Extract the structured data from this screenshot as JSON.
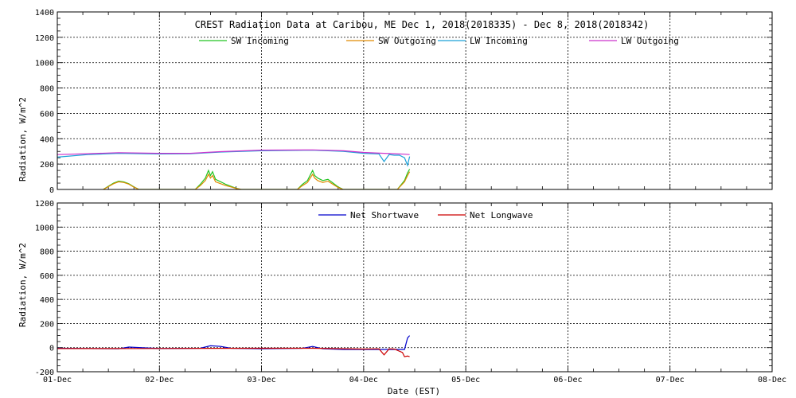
{
  "chart_data": [
    {
      "type": "line",
      "title": "CREST Radiation Data at Caribou, ME   Dec  1, 2018(2018335) - Dec  8, 2018(2018342)",
      "xlabel": "",
      "ylabel": "Radiation, W/m^2",
      "ylim": [
        0,
        1400
      ],
      "yticks": [
        "0",
        "200",
        "400",
        "600",
        "800",
        "1000",
        "1200",
        "1400"
      ],
      "xlim": [
        0,
        7
      ],
      "grid": true,
      "legend_position": "top",
      "series": [
        {
          "name": "SW Incoming",
          "color": "#22c422",
          "x": [
            0.45,
            0.5,
            0.55,
            0.6,
            0.65,
            0.7,
            0.75,
            0.8,
            1.35,
            1.4,
            1.45,
            1.48,
            1.5,
            1.52,
            1.55,
            1.6,
            1.65,
            1.7,
            1.75,
            1.8,
            2.35,
            2.4,
            2.45,
            2.5,
            2.52,
            2.55,
            2.6,
            2.65,
            2.7,
            2.75,
            2.8,
            3.33,
            3.36,
            3.4,
            3.43,
            3.45
          ],
          "y": [
            0,
            25,
            50,
            65,
            60,
            45,
            20,
            0,
            0,
            40,
            90,
            150,
            110,
            140,
            80,
            60,
            40,
            25,
            10,
            0,
            0,
            40,
            70,
            150,
            110,
            90,
            70,
            80,
            50,
            20,
            0,
            0,
            30,
            70,
            130,
            160
          ]
        },
        {
          "name": "SW Outgoing",
          "color": "#e08a00",
          "x": [
            0.45,
            0.5,
            0.55,
            0.6,
            0.65,
            0.7,
            0.75,
            0.8,
            1.35,
            1.4,
            1.45,
            1.48,
            1.5,
            1.52,
            1.55,
            1.6,
            1.65,
            1.7,
            1.75,
            1.8,
            2.35,
            2.4,
            2.45,
            2.5,
            2.52,
            2.55,
            2.6,
            2.65,
            2.7,
            2.75,
            2.8,
            3.33,
            3.36,
            3.4,
            3.43,
            3.45
          ],
          "y": [
            0,
            22,
            45,
            60,
            55,
            42,
            18,
            0,
            0,
            30,
            70,
            120,
            90,
            110,
            60,
            45,
            30,
            20,
            8,
            0,
            0,
            30,
            55,
            120,
            90,
            70,
            55,
            65,
            40,
            15,
            0,
            0,
            25,
            60,
            110,
            140
          ]
        },
        {
          "name": "LW Incoming",
          "color": "#1aa0d8",
          "x": [
            0,
            0.3,
            0.6,
            1.0,
            1.3,
            1.6,
            2.0,
            2.5,
            2.8,
            3.0,
            3.15,
            3.2,
            3.25,
            3.3,
            3.35,
            3.4,
            3.43,
            3.45
          ],
          "y": [
            255,
            275,
            285,
            280,
            282,
            295,
            305,
            310,
            300,
            285,
            280,
            220,
            275,
            270,
            270,
            250,
            190,
            260
          ]
        },
        {
          "name": "LW Outgoing",
          "color": "#cc33cc",
          "x": [
            0,
            0.3,
            0.6,
            1.0,
            1.3,
            1.6,
            2.0,
            2.5,
            2.8,
            3.0,
            3.2,
            3.3,
            3.4,
            3.45
          ],
          "y": [
            275,
            282,
            290,
            285,
            285,
            298,
            310,
            312,
            305,
            292,
            285,
            282,
            278,
            275
          ]
        }
      ]
    },
    {
      "type": "line",
      "title": "",
      "xlabel": "Date (EST)",
      "ylabel": "Radiation, W/m^2",
      "ylim": [
        -200,
        1200
      ],
      "yticks": [
        "-200",
        "0",
        "200",
        "400",
        "600",
        "800",
        "1000",
        "1200"
      ],
      "xlim": [
        0,
        7
      ],
      "xticks": [
        "01-Dec",
        "02-Dec",
        "03-Dec",
        "04-Dec",
        "05-Dec",
        "06-Dec",
        "07-Dec",
        "08-Dec"
      ],
      "grid": true,
      "legend_position": "top",
      "series": [
        {
          "name": "Net Shortwave",
          "color": "#0000cc",
          "x": [
            0,
            0.3,
            0.6,
            0.7,
            1.0,
            1.4,
            1.5,
            1.6,
            1.7,
            2.0,
            2.4,
            2.5,
            2.6,
            2.8,
            3.0,
            3.2,
            3.3,
            3.4,
            3.43,
            3.45
          ],
          "y": [
            -5,
            -8,
            -10,
            5,
            -8,
            -5,
            15,
            10,
            -5,
            -10,
            -5,
            10,
            -10,
            -15,
            -15,
            -15,
            -15,
            -15,
            80,
            100
          ]
        },
        {
          "name": "Net Longwave",
          "color": "#cc0000",
          "x": [
            0,
            0.5,
            1.0,
            1.5,
            2.0,
            2.5,
            3.0,
            3.15,
            3.2,
            3.25,
            3.3,
            3.38,
            3.4,
            3.43,
            3.45
          ],
          "y": [
            -8,
            -8,
            -7,
            -6,
            -5,
            -5,
            -12,
            -10,
            -60,
            -10,
            -12,
            -40,
            -75,
            -70,
            -75
          ]
        }
      ]
    }
  ]
}
